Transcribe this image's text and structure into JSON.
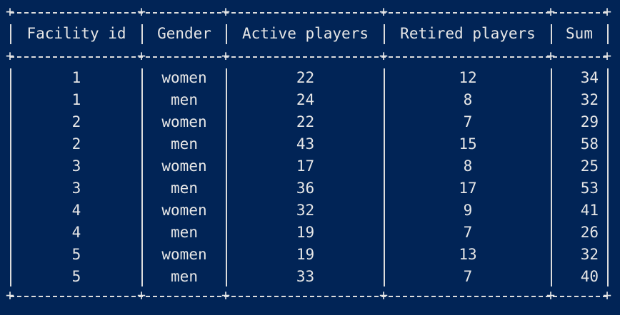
{
  "theme": {
    "background": "#012456",
    "text": "#e6e6e6"
  },
  "table": {
    "headers": [
      "Facility id",
      "Gender",
      "Active players",
      "Retired players",
      "Sum"
    ],
    "rows": [
      [
        "1",
        "women",
        "22",
        "12",
        "34"
      ],
      [
        "1",
        "men",
        "24",
        "8",
        "32"
      ],
      [
        "2",
        "women",
        "22",
        "7",
        "29"
      ],
      [
        "2",
        "men",
        "43",
        "15",
        "58"
      ],
      [
        "3",
        "women",
        "17",
        "8",
        "25"
      ],
      [
        "3",
        "men",
        "36",
        "17",
        "53"
      ],
      [
        "4",
        "women",
        "32",
        "9",
        "41"
      ],
      [
        "4",
        "men",
        "19",
        "7",
        "26"
      ],
      [
        "5",
        "women",
        "19",
        "13",
        "32"
      ],
      [
        "5",
        "men",
        "33",
        "7",
        "40"
      ]
    ]
  }
}
